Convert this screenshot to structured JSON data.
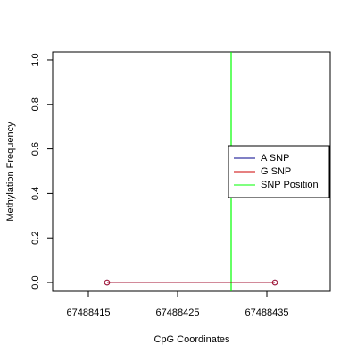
{
  "chart_data": {
    "type": "line",
    "x_label": "CpG Coordinates",
    "y_label": "Methylation Frequency",
    "x": [
      67488417.1,
      67488435.9
    ],
    "series": [
      {
        "name": "A SNP",
        "color": "#00008b",
        "values": [
          0,
          0
        ]
      },
      {
        "name": "G SNP",
        "color": "#cc0000",
        "values": [
          0,
          0
        ]
      }
    ],
    "snp_position": {
      "name": "SNP Position",
      "color": "#00ff00",
      "x": 67488431
    },
    "xlim": [
      67488411,
      67488442.1
    ],
    "xticks": [
      67488415,
      67488425,
      67488435
    ],
    "ylim": [
      -0.04,
      1.036
    ],
    "yticks": [
      {
        "value": 0,
        "label": "0.0"
      },
      {
        "value": 0.2,
        "label": "0.2"
      },
      {
        "value": 0.4,
        "label": "0.4"
      },
      {
        "value": 0.6,
        "label": "0.6"
      },
      {
        "value": 0.8,
        "label": "0.8"
      },
      {
        "value": 1,
        "label": "1.0"
      }
    ],
    "legend": "right"
  }
}
